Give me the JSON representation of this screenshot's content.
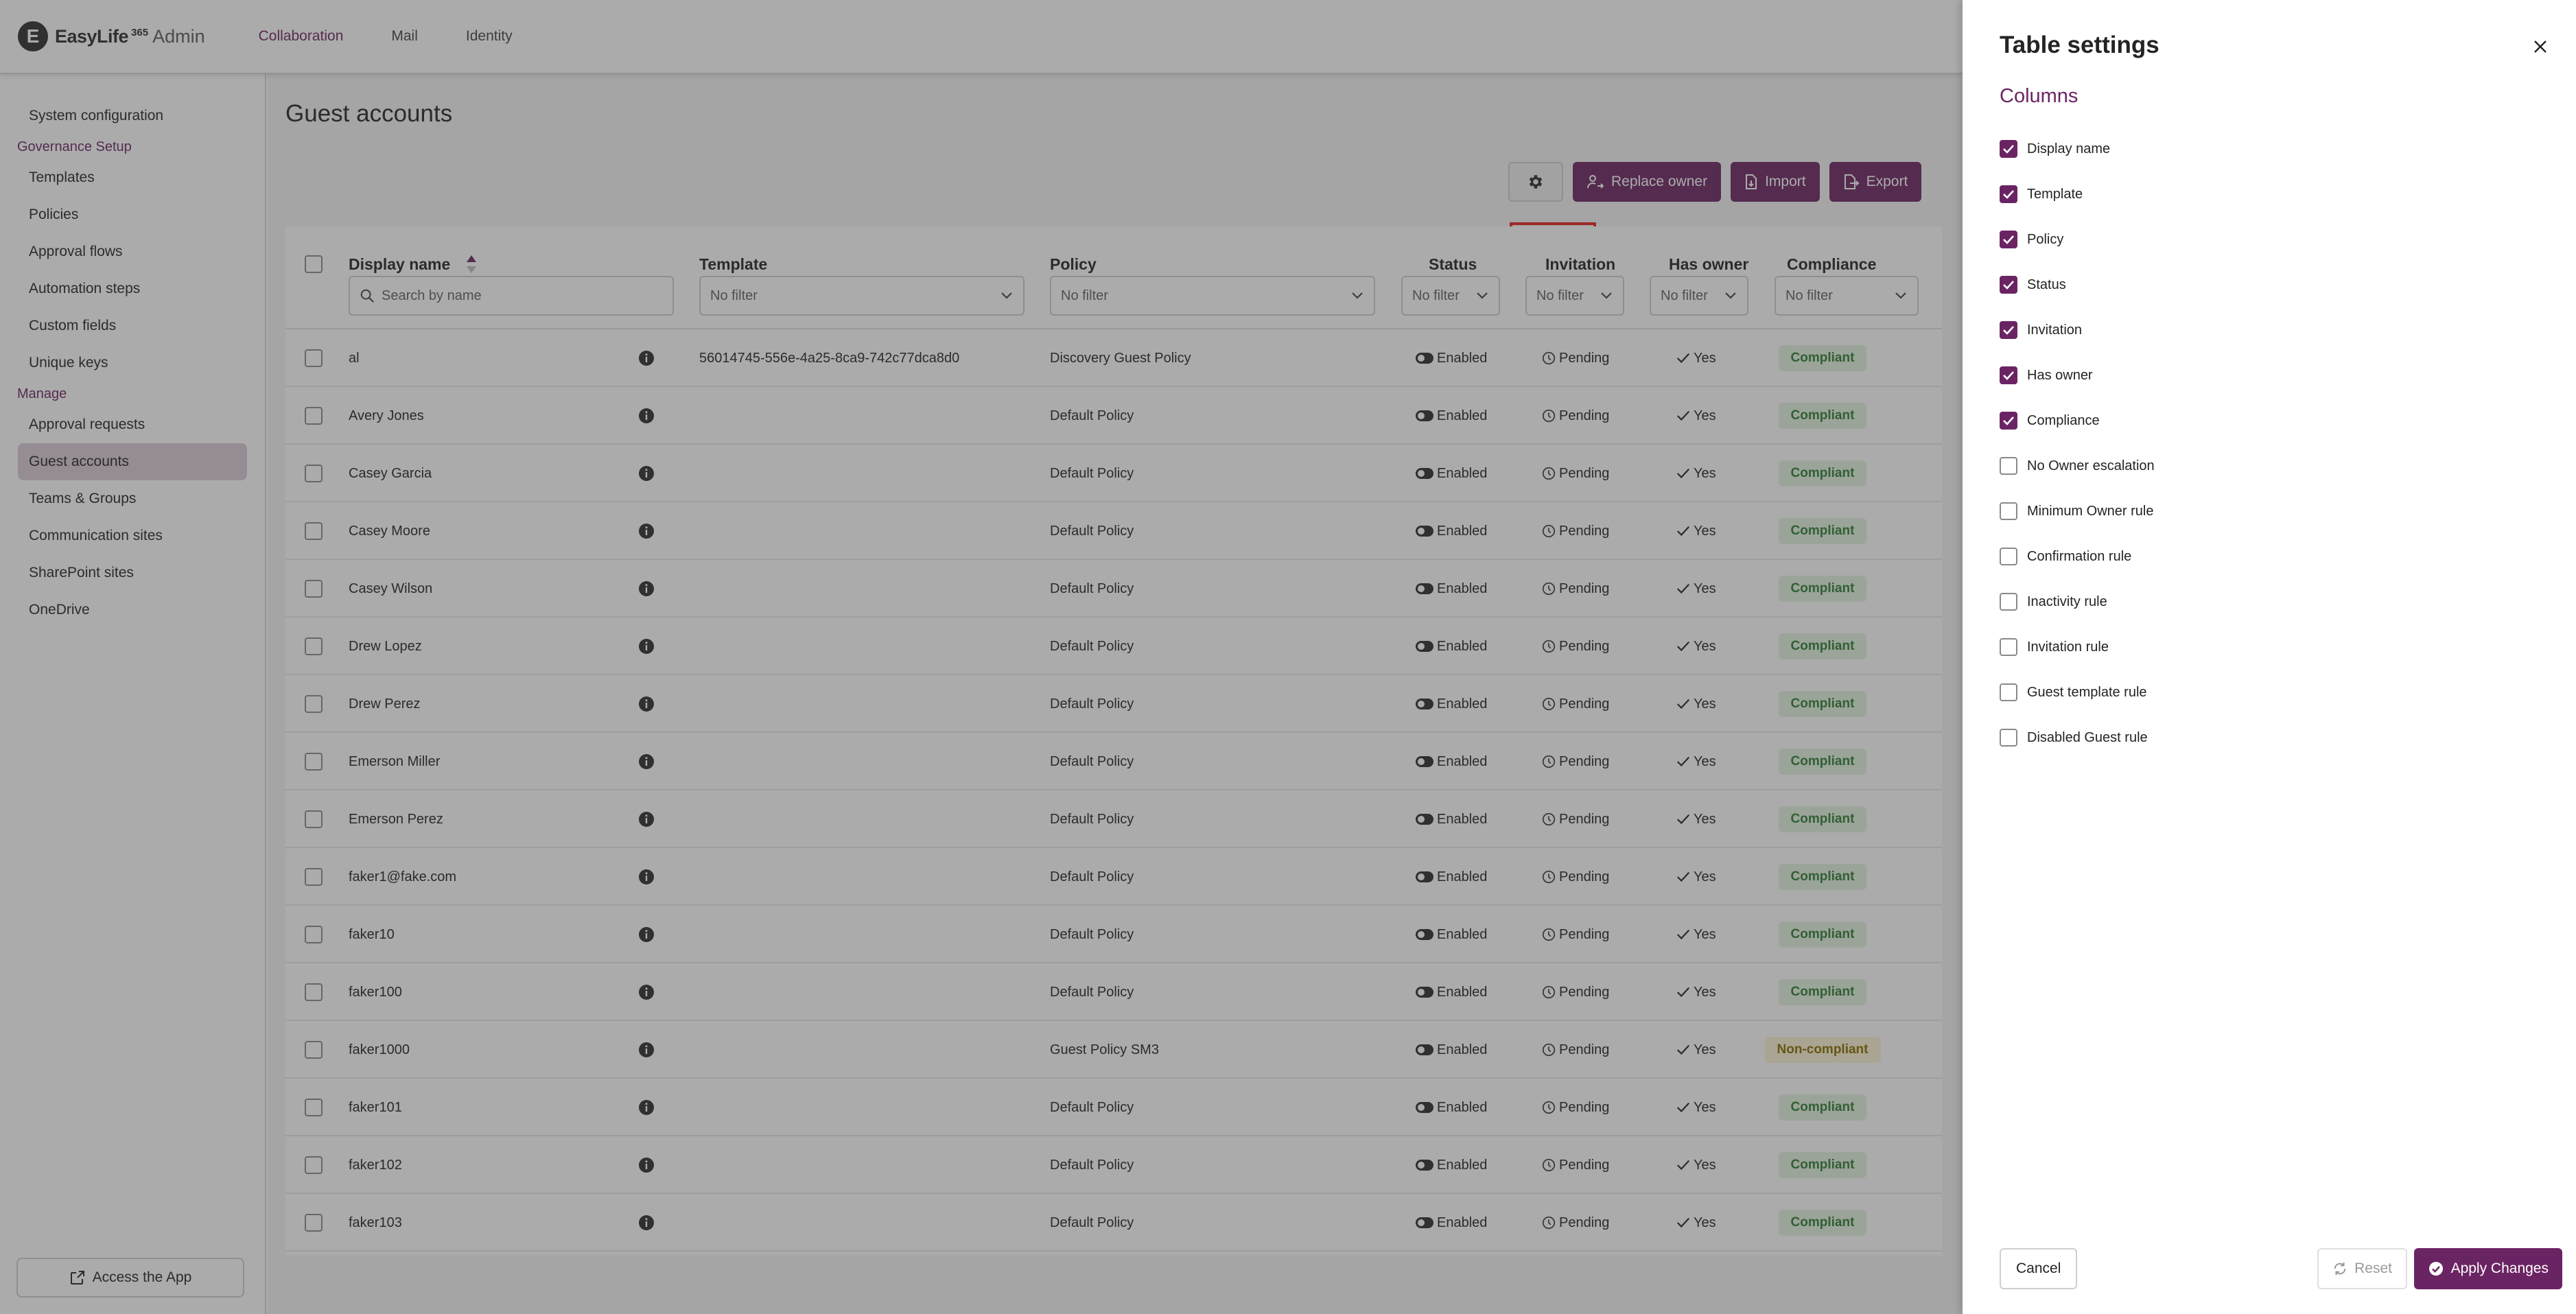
{
  "app": {
    "logo_letter": "E",
    "logo_name": "EasyLife",
    "logo_sup": "365",
    "logo_admin": "Admin"
  },
  "topnav": [
    {
      "label": "Collaboration",
      "active": true
    },
    {
      "label": "Mail",
      "active": false
    },
    {
      "label": "Identity",
      "active": false
    }
  ],
  "sidebar": {
    "items": [
      {
        "type": "item",
        "label": "System configuration"
      },
      {
        "type": "group",
        "label": "Governance Setup"
      },
      {
        "type": "item",
        "label": "Templates"
      },
      {
        "type": "item",
        "label": "Policies"
      },
      {
        "type": "item",
        "label": "Approval flows"
      },
      {
        "type": "item",
        "label": "Automation steps"
      },
      {
        "type": "item",
        "label": "Custom fields"
      },
      {
        "type": "item",
        "label": "Unique keys"
      },
      {
        "type": "group",
        "label": "Manage"
      },
      {
        "type": "item",
        "label": "Approval requests"
      },
      {
        "type": "item",
        "label": "Guest accounts",
        "active": true
      },
      {
        "type": "item",
        "label": "Teams & Groups"
      },
      {
        "type": "item",
        "label": "Communication sites"
      },
      {
        "type": "item",
        "label": "SharePoint sites"
      },
      {
        "type": "item",
        "label": "OneDrive"
      }
    ],
    "access_app": "Access the App"
  },
  "page": {
    "title": "Guest accounts",
    "toolbar": {
      "replace_owner": "Replace owner",
      "import": "Import",
      "export": "Export"
    }
  },
  "table": {
    "headers": {
      "display_name": "Display name",
      "template": "Template",
      "policy": "Policy",
      "status": "Status",
      "invitation": "Invitation",
      "has_owner": "Has owner",
      "compliance": "Compliance"
    },
    "filters": {
      "search_placeholder": "Search by name",
      "no_filter": "No filter"
    },
    "rows": [
      {
        "name": "al",
        "template": "56014745-556e-4a25-8ca9-742c77dca8d0",
        "policy": "Discovery Guest Policy",
        "status": "Enabled",
        "invitation": "Pending",
        "has_owner": "Yes",
        "compliance": "Compliant"
      },
      {
        "name": "Avery Jones",
        "template": "",
        "policy": "Default Policy",
        "status": "Enabled",
        "invitation": "Pending",
        "has_owner": "Yes",
        "compliance": "Compliant"
      },
      {
        "name": "Casey Garcia",
        "template": "",
        "policy": "Default Policy",
        "status": "Enabled",
        "invitation": "Pending",
        "has_owner": "Yes",
        "compliance": "Compliant"
      },
      {
        "name": "Casey Moore",
        "template": "",
        "policy": "Default Policy",
        "status": "Enabled",
        "invitation": "Pending",
        "has_owner": "Yes",
        "compliance": "Compliant"
      },
      {
        "name": "Casey Wilson",
        "template": "",
        "policy": "Default Policy",
        "status": "Enabled",
        "invitation": "Pending",
        "has_owner": "Yes",
        "compliance": "Compliant"
      },
      {
        "name": "Drew Lopez",
        "template": "",
        "policy": "Default Policy",
        "status": "Enabled",
        "invitation": "Pending",
        "has_owner": "Yes",
        "compliance": "Compliant"
      },
      {
        "name": "Drew Perez",
        "template": "",
        "policy": "Default Policy",
        "status": "Enabled",
        "invitation": "Pending",
        "has_owner": "Yes",
        "compliance": "Compliant"
      },
      {
        "name": "Emerson Miller",
        "template": "",
        "policy": "Default Policy",
        "status": "Enabled",
        "invitation": "Pending",
        "has_owner": "Yes",
        "compliance": "Compliant"
      },
      {
        "name": "Emerson Perez",
        "template": "",
        "policy": "Default Policy",
        "status": "Enabled",
        "invitation": "Pending",
        "has_owner": "Yes",
        "compliance": "Compliant"
      },
      {
        "name": "faker1@fake.com",
        "template": "",
        "policy": "Default Policy",
        "status": "Enabled",
        "invitation": "Pending",
        "has_owner": "Yes",
        "compliance": "Compliant"
      },
      {
        "name": "faker10",
        "template": "",
        "policy": "Default Policy",
        "status": "Enabled",
        "invitation": "Pending",
        "has_owner": "Yes",
        "compliance": "Compliant"
      },
      {
        "name": "faker100",
        "template": "",
        "policy": "Default Policy",
        "status": "Enabled",
        "invitation": "Pending",
        "has_owner": "Yes",
        "compliance": "Compliant"
      },
      {
        "name": "faker1000",
        "template": "",
        "policy": "Guest Policy SM3",
        "status": "Enabled",
        "invitation": "Pending",
        "has_owner": "Yes",
        "compliance": "Non-compliant"
      },
      {
        "name": "faker101",
        "template": "",
        "policy": "Default Policy",
        "status": "Enabled",
        "invitation": "Pending",
        "has_owner": "Yes",
        "compliance": "Compliant"
      },
      {
        "name": "faker102",
        "template": "",
        "policy": "Default Policy",
        "status": "Enabled",
        "invitation": "Pending",
        "has_owner": "Yes",
        "compliance": "Compliant"
      },
      {
        "name": "faker103",
        "template": "",
        "policy": "Default Policy",
        "status": "Enabled",
        "invitation": "Pending",
        "has_owner": "Yes",
        "compliance": "Compliant"
      }
    ]
  },
  "panel": {
    "title": "Table settings",
    "subtitle": "Columns",
    "columns": [
      {
        "label": "Display name",
        "checked": true
      },
      {
        "label": "Template",
        "checked": true
      },
      {
        "label": "Policy",
        "checked": true
      },
      {
        "label": "Status",
        "checked": true
      },
      {
        "label": "Invitation",
        "checked": true
      },
      {
        "label": "Has owner",
        "checked": true
      },
      {
        "label": "Compliance",
        "checked": true
      },
      {
        "label": "No Owner escalation",
        "checked": false
      },
      {
        "label": "Minimum Owner rule",
        "checked": false
      },
      {
        "label": "Confirmation rule",
        "checked": false
      },
      {
        "label": "Inactivity rule",
        "checked": false
      },
      {
        "label": "Invitation rule",
        "checked": false
      },
      {
        "label": "Guest template rule",
        "checked": false
      },
      {
        "label": "Disabled Guest rule",
        "checked": false
      }
    ],
    "cancel": "Cancel",
    "reset": "Reset",
    "apply": "Apply Changes"
  },
  "colors": {
    "brand": "#6b2463",
    "highlight": "#e8201c"
  }
}
